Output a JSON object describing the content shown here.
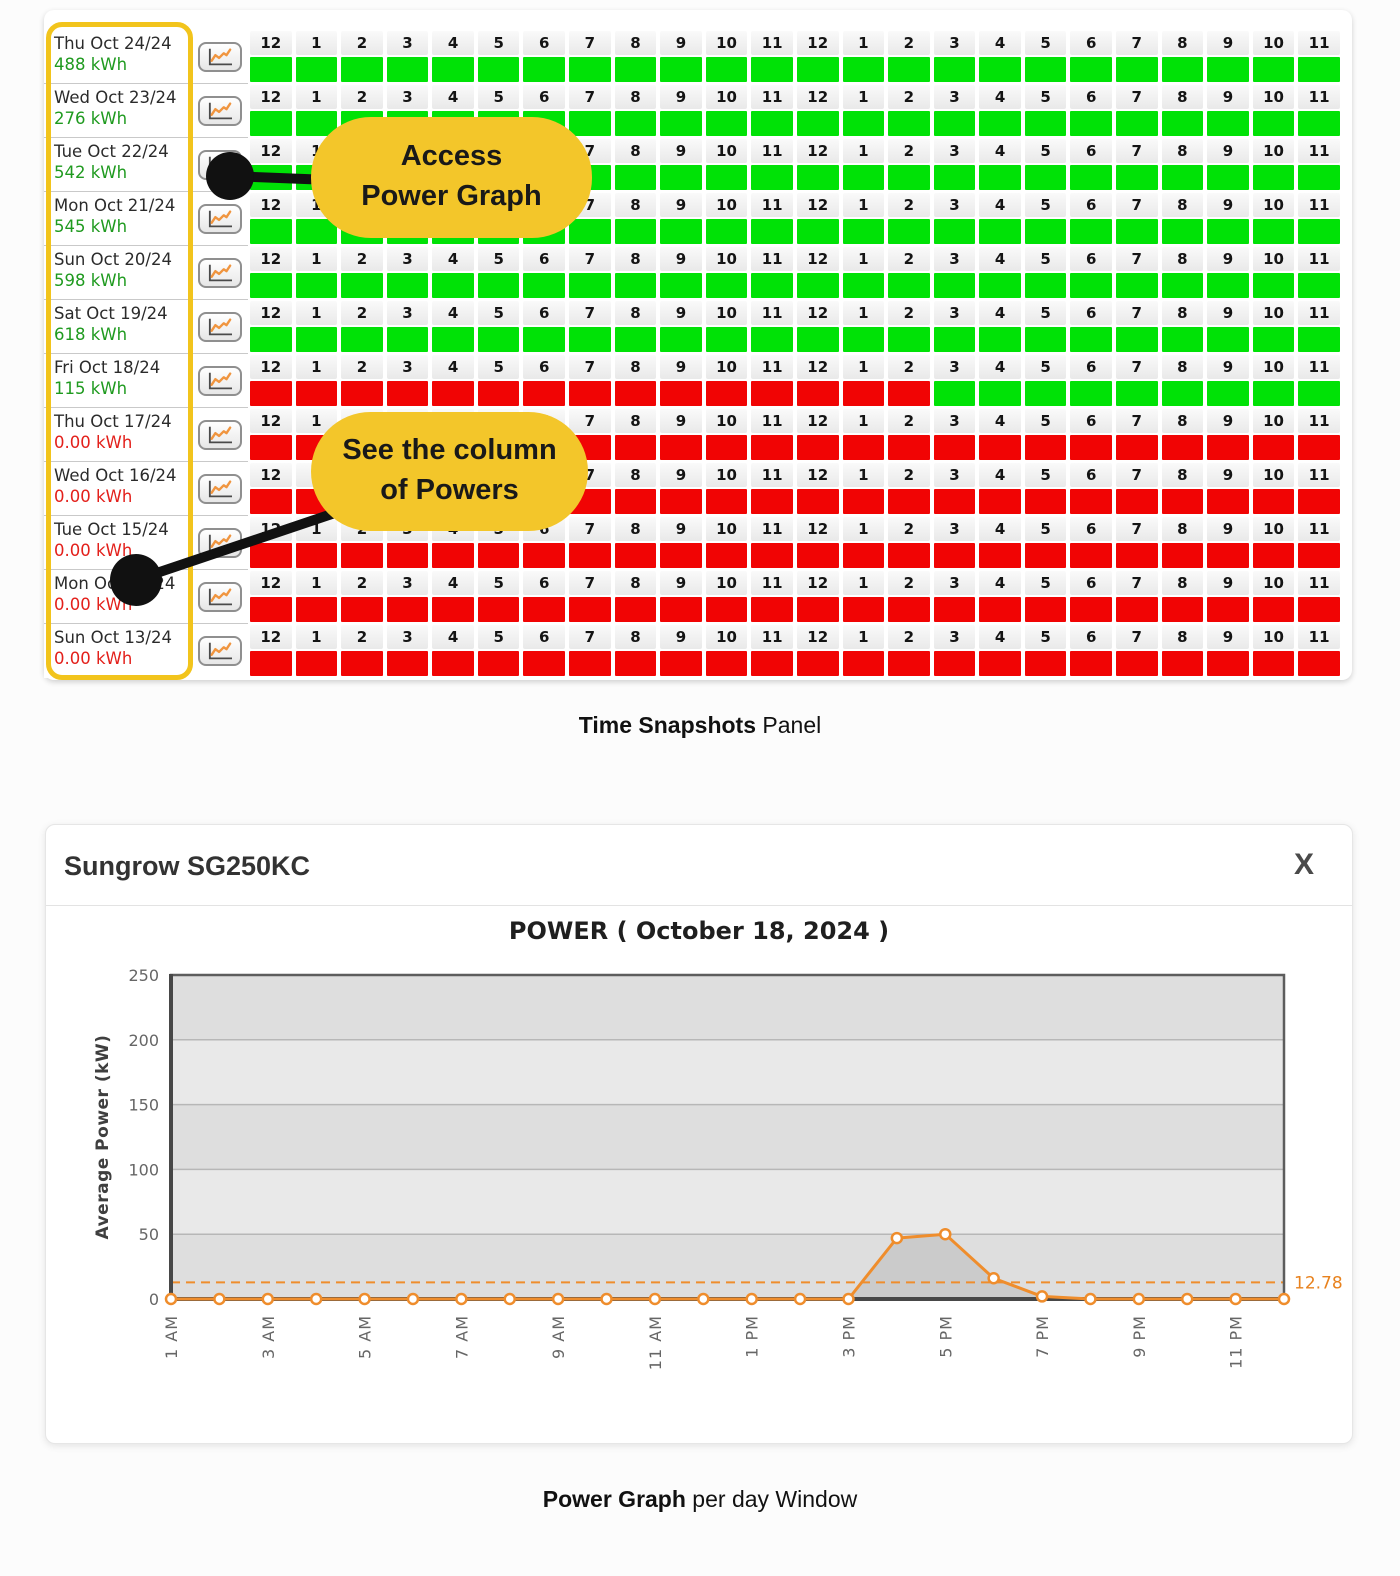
{
  "captions": {
    "panel_bold": "Time Snapshots",
    "panel_rest": " Panel",
    "window_bold": "Power Graph",
    "window_rest": " per day Window"
  },
  "callouts": {
    "access": {
      "line1": "Access",
      "line2": "Power Graph"
    },
    "column": {
      "line1": "See the column",
      "line2": "of Powers"
    }
  },
  "snapshots": {
    "hour_labels": [
      "12",
      "1",
      "2",
      "3",
      "4",
      "5",
      "6",
      "7",
      "8",
      "9",
      "10",
      "11",
      "12",
      "1",
      "2",
      "3",
      "4",
      "5",
      "6",
      "7",
      "8",
      "9",
      "10",
      "11"
    ],
    "rows": [
      {
        "date": "Thu Oct 24/24",
        "energy": "488 kWh",
        "status": "green",
        "cells": "GGGGGGGGGGGGGGGGGGGGGGGG"
      },
      {
        "date": "Wed Oct 23/24",
        "energy": "276 kWh",
        "status": "green",
        "cells": "GGGGGGGGGGGGGGGGGGGGGGGG"
      },
      {
        "date": "Tue Oct 22/24",
        "energy": "542 kWh",
        "status": "green",
        "cells": "GGGGGGGGGGGGGGGGGGGGGGGG"
      },
      {
        "date": "Mon Oct 21/24",
        "energy": "545 kWh",
        "status": "green",
        "cells": "GGGGGGGGGGGGGGGGGGGGGGGG"
      },
      {
        "date": "Sun Oct 20/24",
        "energy": "598 kWh",
        "status": "green",
        "cells": "GGGGGGGGGGGGGGGGGGGGGGGG"
      },
      {
        "date": "Sat Oct 19/24",
        "energy": "618 kWh",
        "status": "green",
        "cells": "GGGGGGGGGGGGGGGGGGGGGGGG"
      },
      {
        "date": "Fri Oct 18/24",
        "energy": "115 kWh",
        "status": "green",
        "cells": "RRRRRRRRRRRRRRRGGGGGGGGG"
      },
      {
        "date": "Thu Oct 17/24",
        "energy": "0.00 kWh",
        "status": "red",
        "cells": "RRRRRRRRRRRRRRRRRRRRRRRR"
      },
      {
        "date": "Wed Oct 16/24",
        "energy": "0.00 kWh",
        "status": "red",
        "cells": "RRRRRRRRRRRRRRRRRRRRRRRR"
      },
      {
        "date": "Tue Oct 15/24",
        "energy": "0.00 kWh",
        "status": "red",
        "cells": "RRRRRRRRRRRRRRRRRRRRRRRR"
      },
      {
        "date": "Mon Oct 14/24",
        "energy": "0.00 kWh",
        "status": "red",
        "cells": "RRRRRRRRRRRRRRRRRRRRRRRR"
      },
      {
        "date": "Sun Oct 13/24",
        "energy": "0.00 kWh",
        "status": "red",
        "cells": "RRRRRRRRRRRRRRRRRRRRRRRR"
      }
    ]
  },
  "power_window": {
    "title": "Sungrow SG250KC",
    "close_label": "X"
  },
  "chart_data": {
    "type": "line",
    "title": "POWER ( October 18, 2024 )",
    "ylabel": "Average Power (kW)",
    "ylim": [
      0,
      250
    ],
    "yticks": [
      0,
      50,
      100,
      150,
      200,
      250
    ],
    "x_hours": [
      "1 AM",
      "2 AM",
      "3 AM",
      "4 AM",
      "5 AM",
      "6 AM",
      "7 AM",
      "8 AM",
      "9 AM",
      "10 AM",
      "11 AM",
      "12 PM",
      "1 PM",
      "2 PM",
      "3 PM",
      "4 PM",
      "5 PM",
      "6 PM",
      "7 PM",
      "8 PM",
      "9 PM",
      "10 PM",
      "11 PM",
      "12 AM"
    ],
    "x_tick_labels": [
      "1 AM",
      "3 AM",
      "5 AM",
      "7 AM",
      "9 AM",
      "11 AM",
      "1 PM",
      "3 PM",
      "5 PM",
      "7 PM",
      "9 PM",
      "11 PM"
    ],
    "values": [
      0,
      0,
      0,
      0,
      0,
      0,
      0,
      0,
      0,
      0,
      0,
      0,
      0,
      0,
      0,
      47,
      50,
      16,
      2,
      0,
      0,
      0,
      0,
      0
    ],
    "avg_line": 12.78,
    "avg_label": "12.78",
    "series_color": "#ef8d2c",
    "grid": true,
    "legend_position": "none"
  }
}
